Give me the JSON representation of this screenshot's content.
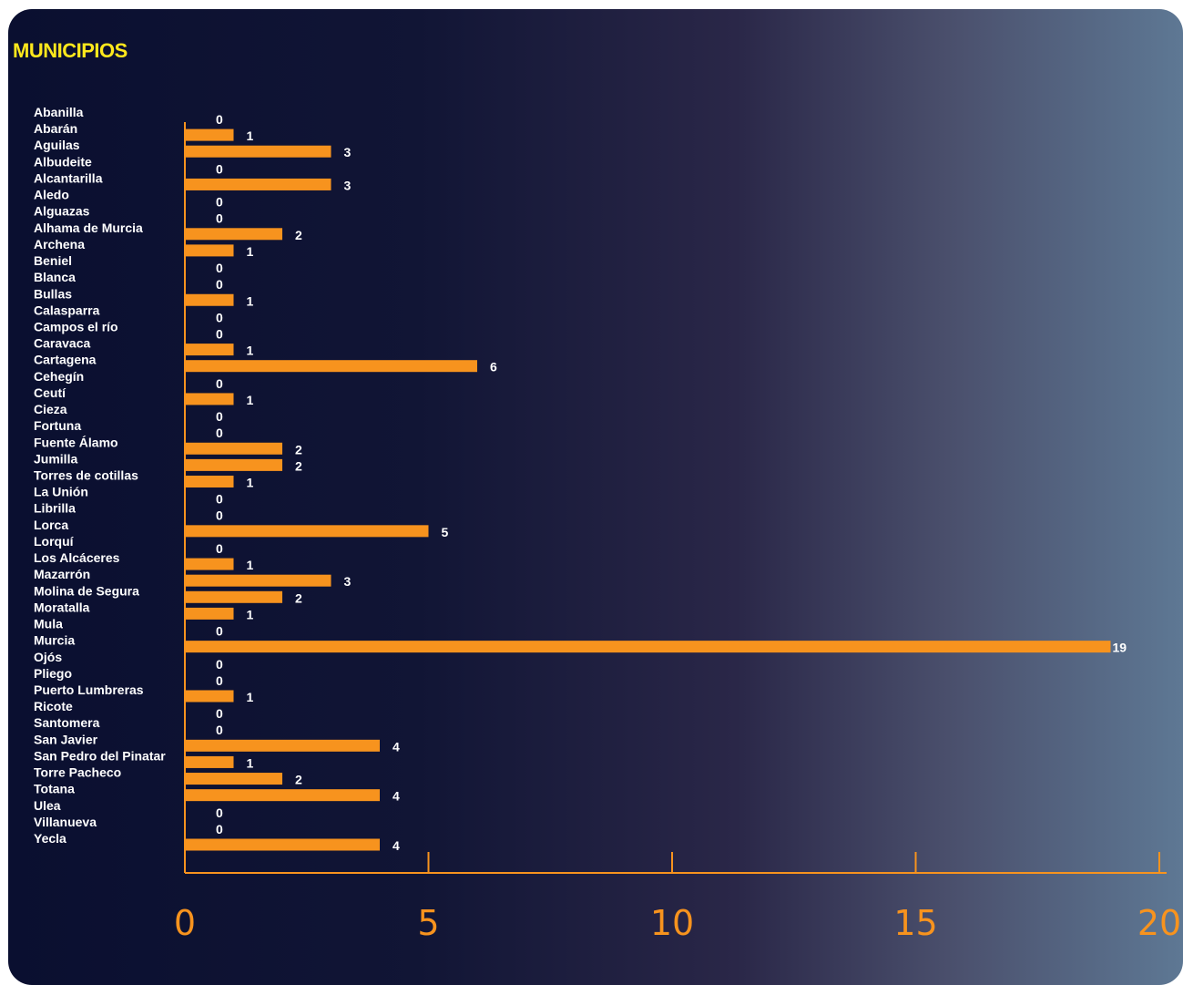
{
  "title": "MUNICIPIOS",
  "colors": {
    "bar": "#f7931e",
    "value_label": "#ffffff",
    "category_label": "#ffffff",
    "axis": "#f7931e",
    "tick_label": "#f7931e",
    "title": "#ffe81c"
  },
  "chart_data": {
    "type": "bar",
    "orientation": "horizontal",
    "title": "MUNICIPIOS",
    "xlabel": "",
    "ylabel": "",
    "xlim": [
      0,
      20
    ],
    "xticks": [
      0,
      5,
      10,
      15,
      20
    ],
    "grid": false,
    "categories": [
      "Abanilla",
      "Abarán",
      "Aguilas",
      "Albudeite",
      "Alcantarilla",
      "Aledo",
      "Alguazas",
      "Alhama de Murcia",
      "Archena",
      "Beniel",
      "Blanca",
      "Bullas",
      "Calasparra",
      "Campos el río",
      "Caravaca",
      "Cartagena",
      "Cehegín",
      "Ceutí",
      "Cieza",
      "Fortuna",
      "Fuente Álamo",
      "Jumilla",
      "Torres de cotillas",
      "La Unión",
      "Librilla",
      "Lorca",
      "Lorquí",
      "Los Alcáceres",
      "Mazarrón",
      "Molina de Segura",
      "Moratalla",
      "Mula",
      "Murcia",
      "Ojós",
      "Pliego",
      "Puerto Lumbreras",
      "Ricote",
      "Santomera",
      "San Javier",
      "San Pedro del Pinatar",
      "Torre Pacheco",
      "Totana",
      "Ulea",
      "Villanueva",
      "Yecla"
    ],
    "values": [
      0,
      1,
      3,
      0,
      3,
      0,
      0,
      2,
      1,
      0,
      0,
      1,
      0,
      0,
      1,
      6,
      0,
      1,
      0,
      0,
      2,
      2,
      1,
      0,
      0,
      5,
      0,
      1,
      3,
      2,
      1,
      0,
      19,
      0,
      0,
      1,
      0,
      0,
      4,
      1,
      2,
      4,
      0,
      0,
      4
    ]
  }
}
